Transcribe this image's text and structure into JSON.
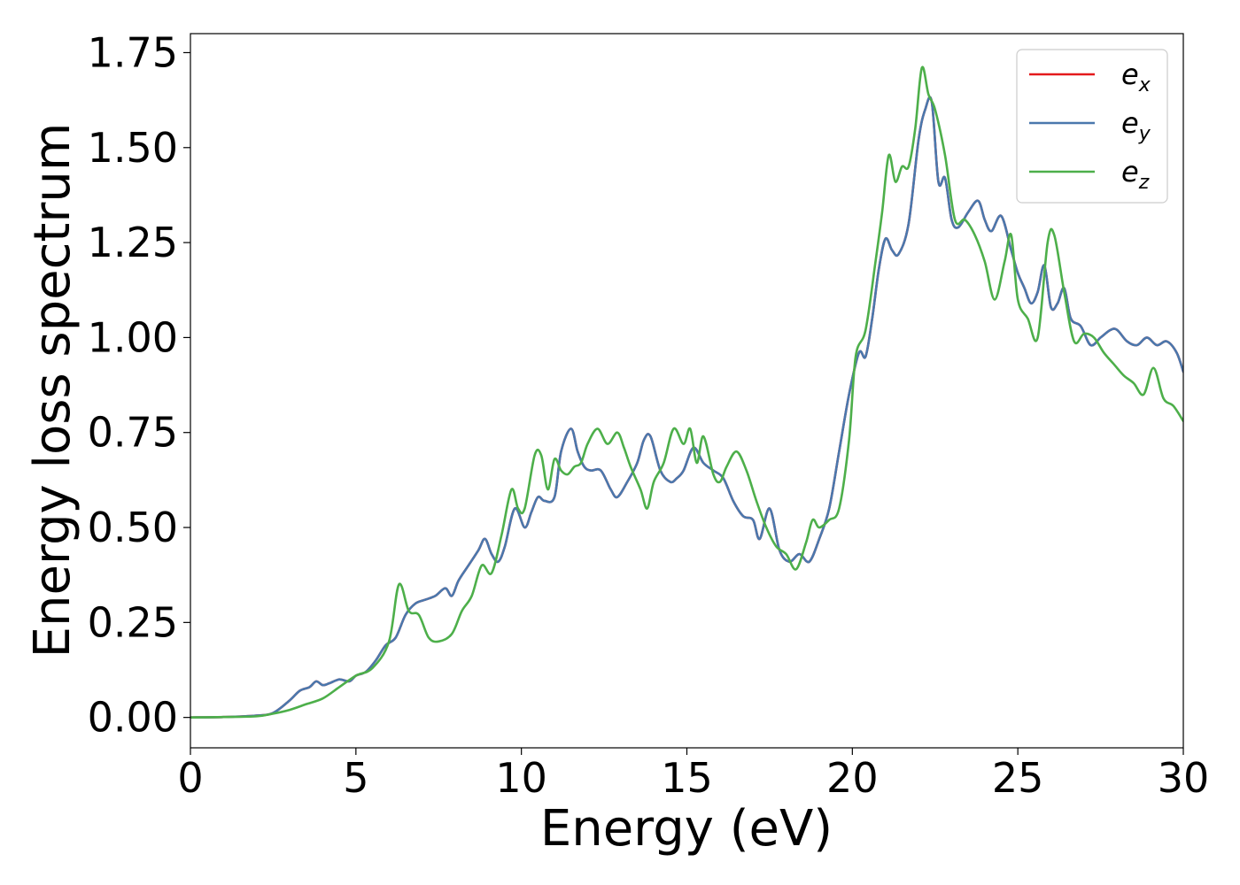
{
  "chart_data": {
    "type": "line",
    "title": "",
    "xlabel": "Energy (eV)",
    "ylabel": "Energy loss spectrum",
    "xlim": [
      0,
      30
    ],
    "ylim": [
      -0.08,
      1.8
    ],
    "xticks": [
      0,
      5,
      10,
      15,
      20,
      25,
      30
    ],
    "xtick_labels": [
      "0",
      "5",
      "10",
      "15",
      "20",
      "25",
      "30"
    ],
    "yticks": [
      0.0,
      0.25,
      0.5,
      0.75,
      1.0,
      1.25,
      1.5,
      1.75
    ],
    "ytick_labels": [
      "0.00",
      "0.25",
      "0.50",
      "0.75",
      "1.00",
      "1.25",
      "1.50",
      "1.75"
    ],
    "grid": false,
    "legend_position": "top-right",
    "series": [
      {
        "name": "e_x",
        "legend_base": "e",
        "legend_sub": "x",
        "color": "#e41a1c",
        "x": [
          0,
          1,
          2,
          2.5,
          3,
          3.3,
          3.6,
          3.8,
          4.0,
          4.2,
          4.5,
          4.8,
          5.0,
          5.3,
          5.6,
          5.9,
          6.2,
          6.5,
          6.8,
          7.1,
          7.4,
          7.7,
          7.9,
          8.1,
          8.4,
          8.7,
          8.9,
          9.1,
          9.3,
          9.5,
          9.8,
          10.1,
          10.3,
          10.5,
          10.7,
          11.0,
          11.2,
          11.5,
          11.7,
          11.9,
          12.1,
          12.4,
          12.7,
          12.9,
          13.2,
          13.5,
          13.7,
          13.9,
          14.2,
          14.5,
          14.7,
          14.9,
          15.2,
          15.5,
          15.8,
          16.1,
          16.4,
          16.7,
          17.0,
          17.2,
          17.5,
          17.8,
          18.1,
          18.4,
          18.7,
          19.0,
          19.3,
          19.6,
          19.9,
          20.2,
          20.4,
          20.6,
          20.8,
          21.0,
          21.2,
          21.4,
          21.7,
          22.0,
          22.2,
          22.4,
          22.6,
          22.8,
          23.0,
          23.2,
          23.5,
          23.8,
          24.0,
          24.2,
          24.5,
          24.8,
          25.0,
          25.2,
          25.4,
          25.6,
          25.8,
          26.0,
          26.2,
          26.4,
          26.6,
          26.9,
          27.2,
          27.5,
          27.8,
          28.0,
          28.3,
          28.6,
          28.9,
          29.2,
          29.5,
          29.8,
          30.0
        ],
        "values": [
          0,
          0.001,
          0.005,
          0.012,
          0.045,
          0.07,
          0.08,
          0.095,
          0.085,
          0.09,
          0.1,
          0.095,
          0.11,
          0.12,
          0.15,
          0.19,
          0.21,
          0.27,
          0.3,
          0.31,
          0.32,
          0.34,
          0.32,
          0.36,
          0.4,
          0.44,
          0.47,
          0.43,
          0.41,
          0.45,
          0.55,
          0.5,
          0.54,
          0.58,
          0.57,
          0.58,
          0.7,
          0.76,
          0.7,
          0.66,
          0.65,
          0.65,
          0.6,
          0.58,
          0.62,
          0.67,
          0.73,
          0.74,
          0.65,
          0.62,
          0.63,
          0.65,
          0.71,
          0.67,
          0.65,
          0.63,
          0.57,
          0.53,
          0.52,
          0.47,
          0.55,
          0.44,
          0.41,
          0.43,
          0.41,
          0.47,
          0.55,
          0.7,
          0.85,
          0.96,
          0.95,
          1.05,
          1.18,
          1.26,
          1.23,
          1.22,
          1.3,
          1.52,
          1.6,
          1.62,
          1.41,
          1.42,
          1.31,
          1.29,
          1.33,
          1.36,
          1.31,
          1.28,
          1.32,
          1.23,
          1.17,
          1.13,
          1.09,
          1.12,
          1.19,
          1.08,
          1.09,
          1.13,
          1.05,
          1.03,
          0.98,
          1.0,
          1.02,
          1.02,
          0.99,
          0.98,
          1.0,
          0.98,
          0.99,
          0.96,
          0.91
        ]
      },
      {
        "name": "e_y",
        "legend_base": "e",
        "legend_sub": "y",
        "color": "#4a78ad",
        "x": [
          0,
          1,
          2,
          2.5,
          3,
          3.3,
          3.6,
          3.8,
          4.0,
          4.2,
          4.5,
          4.8,
          5.0,
          5.3,
          5.6,
          5.9,
          6.2,
          6.5,
          6.8,
          7.1,
          7.4,
          7.7,
          7.9,
          8.1,
          8.4,
          8.7,
          8.9,
          9.1,
          9.3,
          9.5,
          9.8,
          10.1,
          10.3,
          10.5,
          10.7,
          11.0,
          11.2,
          11.5,
          11.7,
          11.9,
          12.1,
          12.4,
          12.7,
          12.9,
          13.2,
          13.5,
          13.7,
          13.9,
          14.2,
          14.5,
          14.7,
          14.9,
          15.2,
          15.5,
          15.8,
          16.1,
          16.4,
          16.7,
          17.0,
          17.2,
          17.5,
          17.8,
          18.1,
          18.4,
          18.7,
          19.0,
          19.3,
          19.6,
          19.9,
          20.2,
          20.4,
          20.6,
          20.8,
          21.0,
          21.2,
          21.4,
          21.7,
          22.0,
          22.2,
          22.4,
          22.6,
          22.8,
          23.0,
          23.2,
          23.5,
          23.8,
          24.0,
          24.2,
          24.5,
          24.8,
          25.0,
          25.2,
          25.4,
          25.6,
          25.8,
          26.0,
          26.2,
          26.4,
          26.6,
          26.9,
          27.2,
          27.5,
          27.8,
          28.0,
          28.3,
          28.6,
          28.9,
          29.2,
          29.5,
          29.8,
          30.0
        ],
        "values": [
          0,
          0.001,
          0.005,
          0.012,
          0.045,
          0.07,
          0.08,
          0.095,
          0.085,
          0.09,
          0.1,
          0.095,
          0.11,
          0.12,
          0.15,
          0.19,
          0.21,
          0.27,
          0.3,
          0.31,
          0.32,
          0.34,
          0.32,
          0.36,
          0.4,
          0.44,
          0.47,
          0.43,
          0.41,
          0.45,
          0.55,
          0.5,
          0.54,
          0.58,
          0.57,
          0.58,
          0.7,
          0.76,
          0.7,
          0.66,
          0.65,
          0.65,
          0.6,
          0.58,
          0.62,
          0.67,
          0.73,
          0.74,
          0.65,
          0.62,
          0.63,
          0.65,
          0.71,
          0.67,
          0.65,
          0.63,
          0.57,
          0.53,
          0.52,
          0.47,
          0.55,
          0.44,
          0.41,
          0.43,
          0.41,
          0.47,
          0.55,
          0.7,
          0.85,
          0.96,
          0.95,
          1.05,
          1.18,
          1.26,
          1.23,
          1.22,
          1.3,
          1.52,
          1.6,
          1.62,
          1.41,
          1.42,
          1.31,
          1.29,
          1.33,
          1.36,
          1.31,
          1.28,
          1.32,
          1.23,
          1.17,
          1.13,
          1.09,
          1.12,
          1.19,
          1.08,
          1.09,
          1.13,
          1.05,
          1.03,
          0.98,
          1.0,
          1.02,
          1.02,
          0.99,
          0.98,
          1.0,
          0.98,
          0.99,
          0.96,
          0.91
        ]
      },
      {
        "name": "e_z",
        "legend_base": "e",
        "legend_sub": "z",
        "color": "#4daf4a",
        "x": [
          0,
          1,
          2,
          2.5,
          3,
          3.5,
          4.0,
          4.5,
          5.0,
          5.5,
          6.0,
          6.3,
          6.6,
          6.9,
          7.2,
          7.5,
          7.9,
          8.2,
          8.5,
          8.8,
          9.1,
          9.4,
          9.7,
          9.9,
          10.1,
          10.4,
          10.6,
          10.8,
          11.0,
          11.2,
          11.4,
          11.6,
          11.8,
          12.0,
          12.3,
          12.6,
          12.9,
          13.1,
          13.3,
          13.6,
          13.8,
          14.0,
          14.3,
          14.6,
          14.9,
          15.1,
          15.3,
          15.5,
          15.8,
          16.0,
          16.2,
          16.5,
          16.8,
          17.1,
          17.4,
          17.7,
          18.0,
          18.3,
          18.6,
          18.8,
          19.0,
          19.3,
          19.6,
          19.9,
          20.1,
          20.4,
          20.7,
          20.9,
          21.1,
          21.3,
          21.5,
          21.7,
          21.9,
          22.1,
          22.3,
          22.5,
          22.8,
          23.1,
          23.4,
          23.7,
          24.0,
          24.3,
          24.6,
          24.8,
          25.0,
          25.3,
          25.6,
          25.9,
          26.1,
          26.4,
          26.7,
          27.0,
          27.3,
          27.6,
          27.9,
          28.2,
          28.5,
          28.8,
          29.1,
          29.4,
          29.7,
          30.0
        ],
        "values": [
          0,
          0.001,
          0.003,
          0.01,
          0.02,
          0.035,
          0.05,
          0.08,
          0.11,
          0.13,
          0.2,
          0.35,
          0.28,
          0.27,
          0.21,
          0.2,
          0.22,
          0.28,
          0.32,
          0.4,
          0.38,
          0.48,
          0.6,
          0.55,
          0.55,
          0.69,
          0.69,
          0.6,
          0.68,
          0.65,
          0.64,
          0.66,
          0.67,
          0.72,
          0.76,
          0.72,
          0.75,
          0.71,
          0.66,
          0.6,
          0.55,
          0.62,
          0.67,
          0.76,
          0.72,
          0.76,
          0.67,
          0.74,
          0.64,
          0.62,
          0.66,
          0.7,
          0.65,
          0.57,
          0.5,
          0.45,
          0.43,
          0.39,
          0.46,
          0.52,
          0.5,
          0.52,
          0.55,
          0.73,
          0.95,
          1.02,
          1.2,
          1.33,
          1.48,
          1.41,
          1.45,
          1.45,
          1.55,
          1.71,
          1.64,
          1.6,
          1.48,
          1.31,
          1.31,
          1.27,
          1.2,
          1.1,
          1.2,
          1.27,
          1.1,
          1.05,
          1.0,
          1.25,
          1.27,
          1.12,
          0.99,
          1.01,
          1.0,
          0.96,
          0.93,
          0.9,
          0.88,
          0.85,
          0.92,
          0.84,
          0.82,
          0.78
        ]
      }
    ]
  }
}
